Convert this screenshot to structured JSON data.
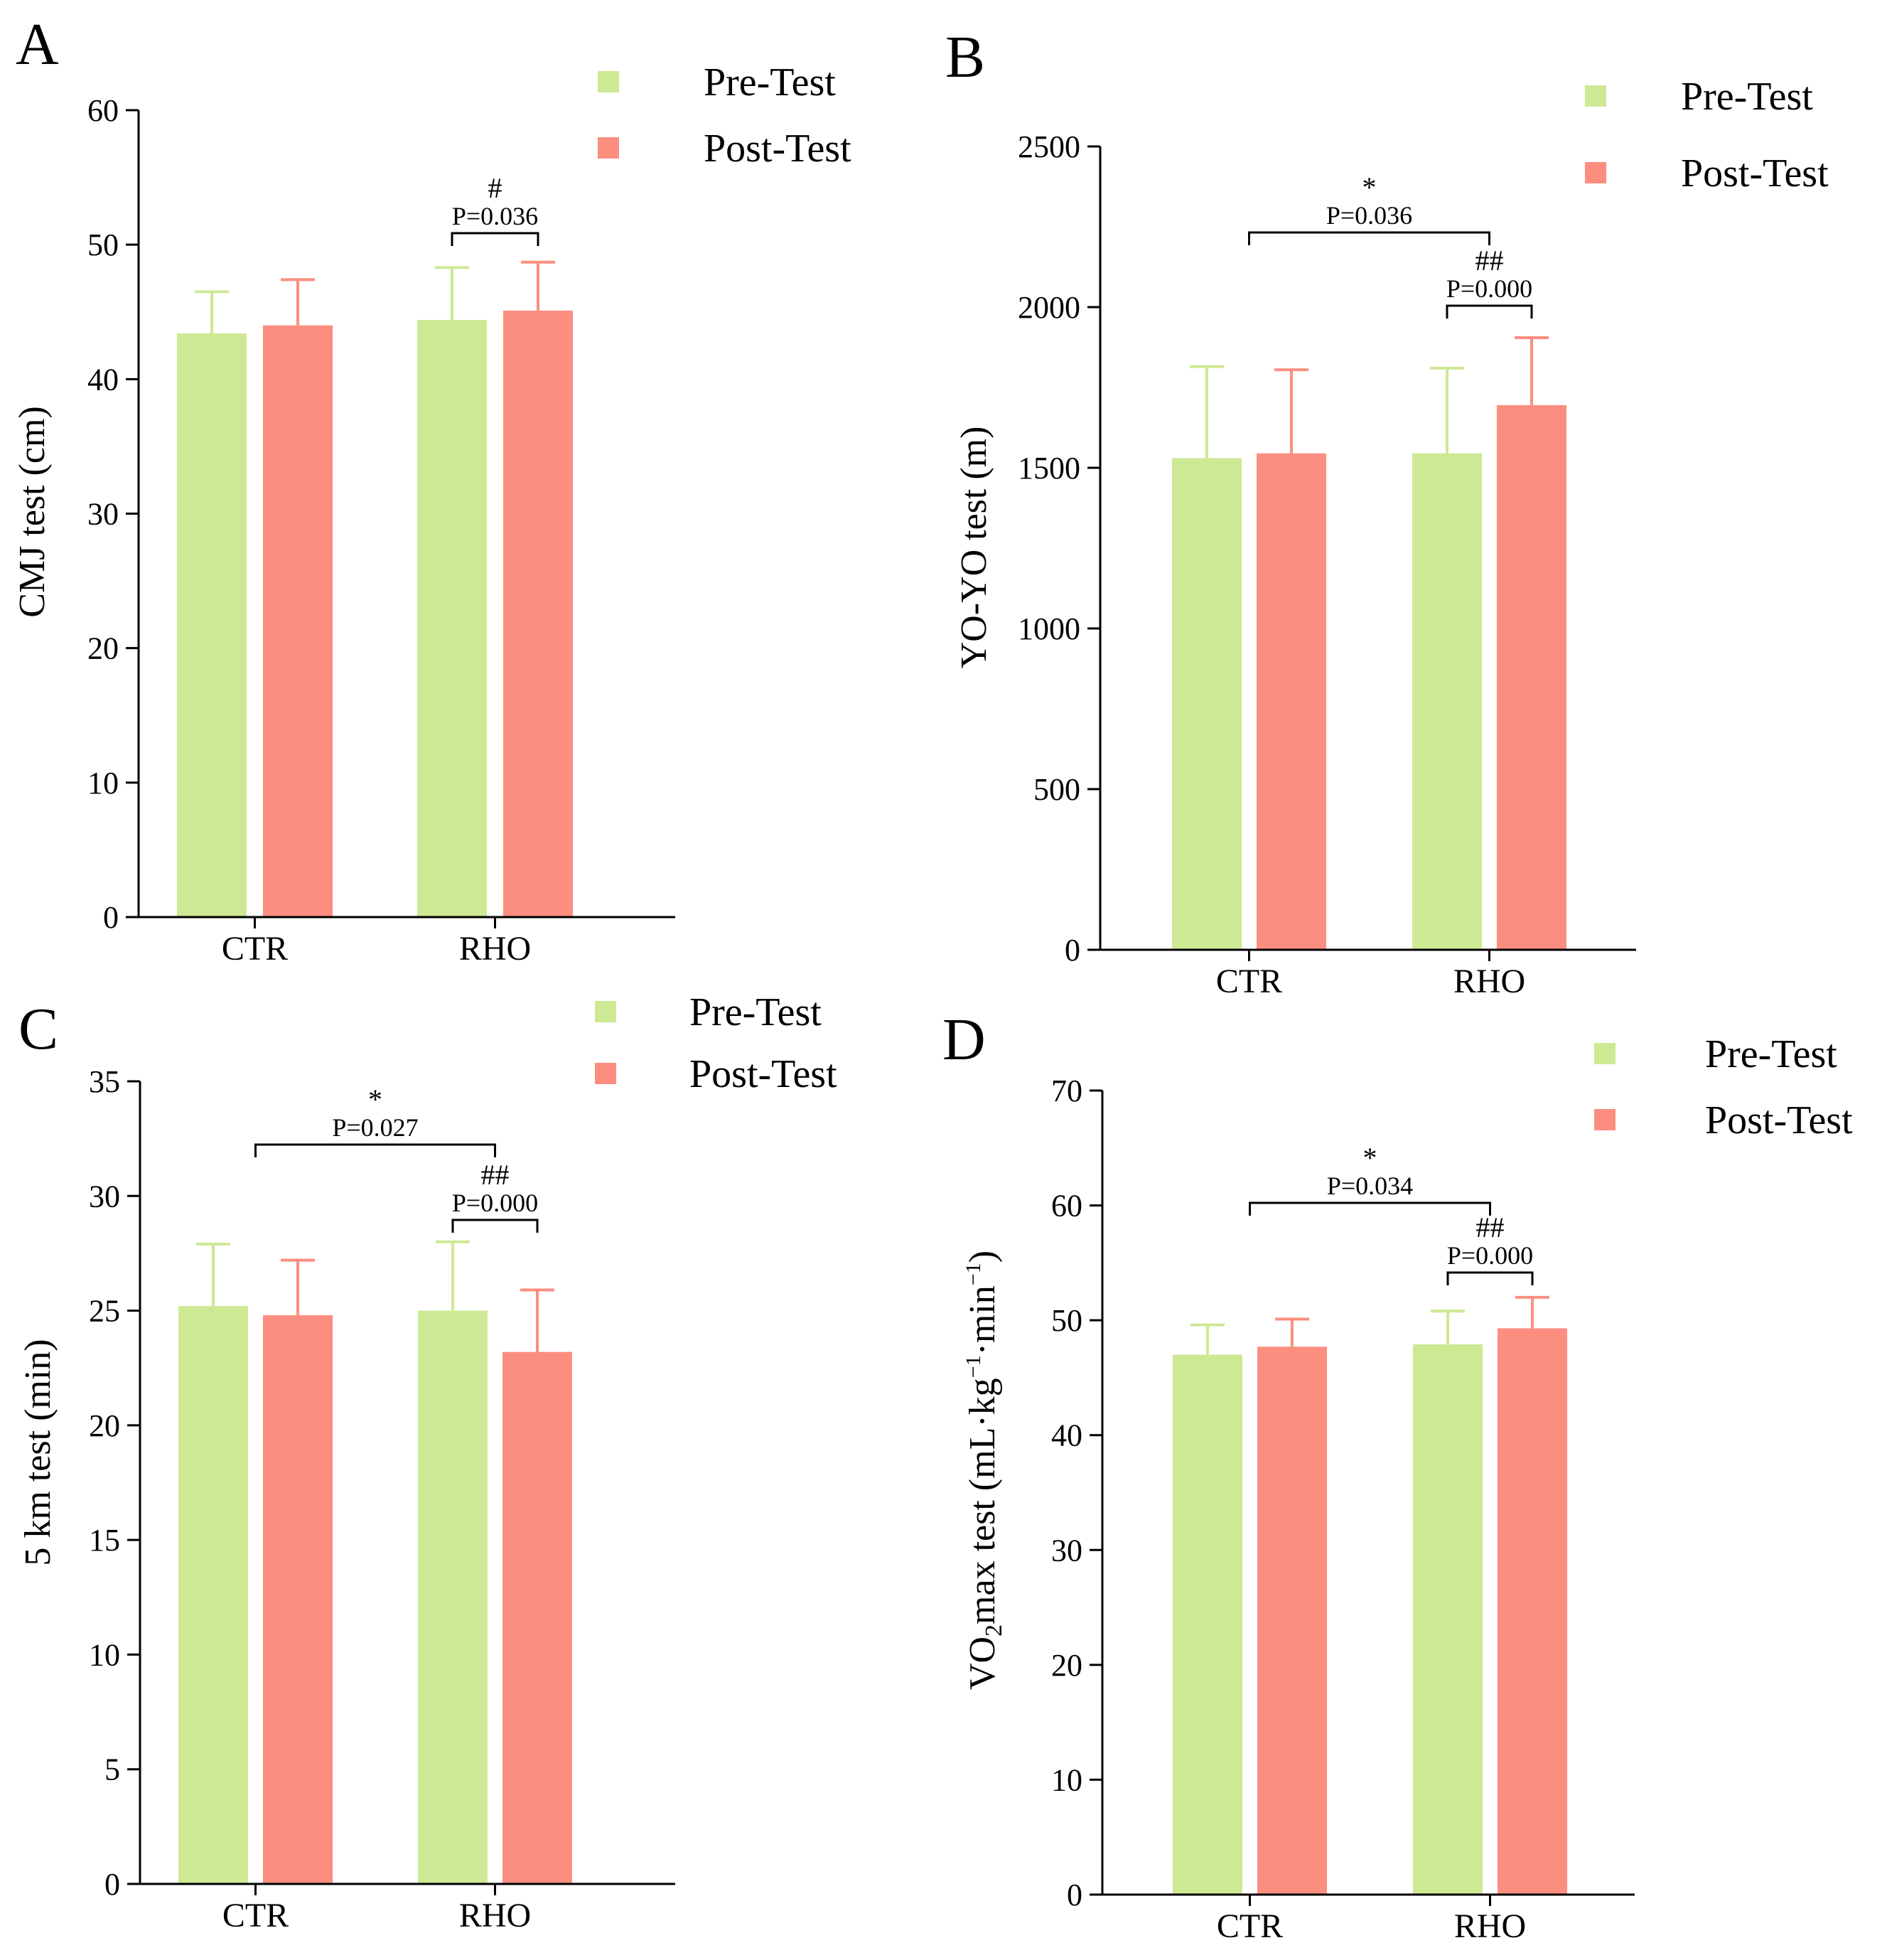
{
  "colors": {
    "pre": "#cde994",
    "post": "#fc8e80",
    "axis": "#000000"
  },
  "chart_data": [
    {
      "panel": "A",
      "type": "bar",
      "title": "",
      "xlabel": "",
      "ylabel": "CMJ test (cm)",
      "ylim": [
        0,
        60
      ],
      "yticks": [
        0,
        10,
        20,
        30,
        40,
        50,
        60
      ],
      "categories": [
        "CTR",
        "RHO"
      ],
      "legend": [
        "Pre-Test",
        "Post-Test"
      ],
      "series": [
        {
          "name": "Pre-Test",
          "values": [
            43.4,
            44.4
          ],
          "errors": [
            3.1,
            3.9
          ]
        },
        {
          "name": "Post-Test",
          "values": [
            44.0,
            45.1
          ],
          "errors": [
            3.4,
            3.6
          ]
        }
      ],
      "annotations": [
        {
          "kind": "within",
          "category": 1,
          "mark": "#",
          "text": "P=0.036"
        }
      ]
    },
    {
      "panel": "B",
      "type": "bar",
      "title": "",
      "xlabel": "",
      "ylabel": "YO-YO test (m)",
      "ylim": [
        0,
        2500
      ],
      "yticks": [
        0,
        500,
        1000,
        1500,
        2000,
        2500
      ],
      "categories": [
        "CTR",
        "RHO"
      ],
      "legend": [
        "Pre-Test",
        "Post-Test"
      ],
      "series": [
        {
          "name": "Pre-Test",
          "values": [
            1530,
            1545
          ],
          "errors": [
            285,
            265
          ]
        },
        {
          "name": "Post-Test",
          "values": [
            1545,
            1695
          ],
          "errors": [
            260,
            210
          ]
        }
      ],
      "annotations": [
        {
          "kind": "between",
          "mark": "*",
          "text": "P=0.036"
        },
        {
          "kind": "within",
          "category": 1,
          "mark": "##",
          "text": "P=0.000"
        }
      ]
    },
    {
      "panel": "C",
      "type": "bar",
      "title": "",
      "xlabel": "",
      "ylabel": "5 km test (min)",
      "ylim": [
        0,
        35
      ],
      "yticks": [
        0,
        5,
        10,
        15,
        20,
        25,
        30,
        35
      ],
      "categories": [
        "CTR",
        "RHO"
      ],
      "legend": [
        "Pre-Test",
        "Post-Test"
      ],
      "series": [
        {
          "name": "Pre-Test",
          "values": [
            25.2,
            25.0
          ],
          "errors": [
            2.7,
            3.0
          ]
        },
        {
          "name": "Post-Test",
          "values": [
            24.8,
            23.2
          ],
          "errors": [
            2.4,
            2.7
          ]
        }
      ],
      "annotations": [
        {
          "kind": "between",
          "mark": "*",
          "text": "P=0.027"
        },
        {
          "kind": "within",
          "category": 1,
          "mark": "##",
          "text": "P=0.000"
        }
      ]
    },
    {
      "panel": "D",
      "type": "bar",
      "title": "",
      "xlabel": "",
      "ylabel_main": "VO",
      "ylabel_sub": "2",
      "ylabel_rest": "max test (mL·kg",
      "ylabel_sup1": "−1",
      "ylabel_mid": "·min",
      "ylabel_sup2": "−1",
      "ylabel_end": ")",
      "ylim": [
        0,
        70
      ],
      "yticks": [
        0,
        10,
        20,
        30,
        40,
        50,
        60,
        70
      ],
      "categories": [
        "CTR",
        "RHO"
      ],
      "legend": [
        "Pre-Test",
        "Post-Test"
      ],
      "series": [
        {
          "name": "Pre-Test",
          "values": [
            47.0,
            47.9
          ],
          "errors": [
            2.6,
            2.9
          ]
        },
        {
          "name": "Post-Test",
          "values": [
            47.7,
            49.3
          ],
          "errors": [
            2.4,
            2.7
          ]
        }
      ],
      "annotations": [
        {
          "kind": "between",
          "mark": "*",
          "text": "P=0.034"
        },
        {
          "kind": "within",
          "category": 1,
          "mark": "##",
          "text": "P=0.000"
        }
      ]
    }
  ]
}
